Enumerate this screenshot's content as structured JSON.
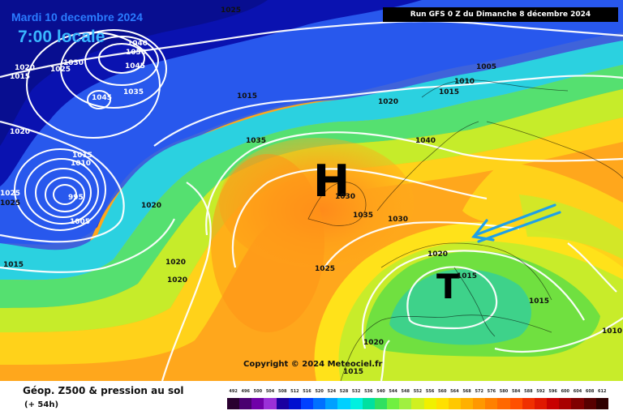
{
  "header": {
    "date": "Mardi 10 decembre 2024",
    "time": "7:00 locale",
    "run": "Run GFS 0 Z du Dimanche 8 décembre 2024"
  },
  "centers": {
    "high": "H",
    "low": "T"
  },
  "isobar_labels": [
    "1025",
    "1020",
    "1015",
    "1025",
    "1030",
    "1040",
    "1050",
    "1045",
    "1045",
    "1035",
    "1020",
    "1015",
    "1010",
    "995",
    "1005",
    "1020",
    "1025",
    "1025",
    "1015",
    "1020",
    "1020",
    "1035",
    "1030",
    "1035",
    "1030",
    "1040",
    "1020",
    "1010",
    "1005",
    "1015",
    "1020",
    "1025",
    "1015",
    "1015",
    "1020",
    "1015",
    "1010",
    "1015"
  ],
  "copyright": "Copyright © 2024 Meteociel.fr",
  "footer": {
    "title": "Géop. Z500 & pression au sol",
    "lead_time": "(+ 54h)"
  },
  "legend": {
    "values": [
      "492",
      "496",
      "500",
      "504",
      "508",
      "512",
      "516",
      "520",
      "524",
      "528",
      "532",
      "536",
      "540",
      "544",
      "548",
      "552",
      "556",
      "560",
      "564",
      "568",
      "572",
      "576",
      "580",
      "584",
      "588",
      "592",
      "596",
      "600",
      "604",
      "608",
      "612"
    ],
    "colors": [
      "#2a0030",
      "#4a0070",
      "#7000a8",
      "#9a30d8",
      "#1a00a0",
      "#0010d0",
      "#0040ff",
      "#0070ff",
      "#00a0ff",
      "#00d0ff",
      "#00f0e0",
      "#00e0a0",
      "#30e060",
      "#70f040",
      "#a0f040",
      "#d0f020",
      "#f0f000",
      "#ffe000",
      "#ffc800",
      "#ffb000",
      "#ff9800",
      "#ff8000",
      "#ff6800",
      "#ff5000",
      "#f03000",
      "#e01800",
      "#c80000",
      "#a80000",
      "#800000",
      "#580000",
      "#300000"
    ]
  }
}
